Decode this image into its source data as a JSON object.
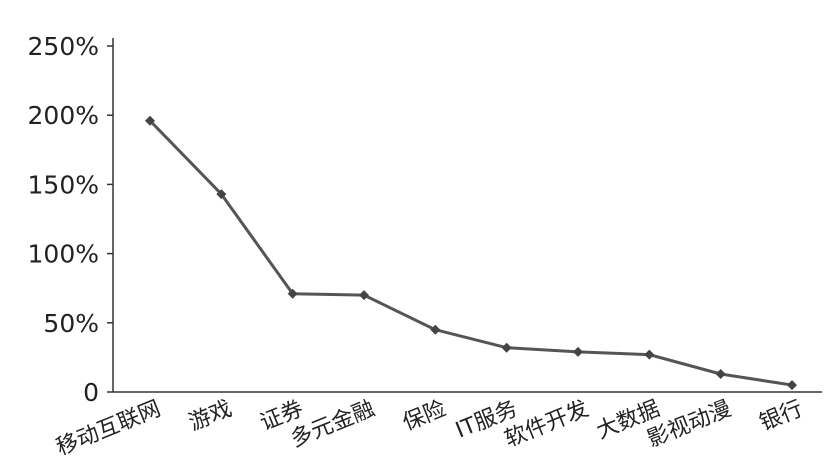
{
  "chart_data": {
    "type": "line",
    "categories": [
      "移动互联网",
      "游戏",
      "证券",
      "多元金融",
      "保险",
      "IT服务",
      "软件开发",
      "大数据",
      "影视动漫",
      "银行"
    ],
    "series": [
      {
        "values": [
          196,
          143,
          71,
          70,
          45,
          32,
          29,
          27,
          13,
          5
        ]
      }
    ],
    "ylim": [
      0,
      250
    ],
    "yticks": [
      {
        "value": 0,
        "label": "0"
      },
      {
        "value": 50,
        "label": "50%"
      },
      {
        "value": 100,
        "label": "100%"
      },
      {
        "value": 150,
        "label": "150%"
      },
      {
        "value": 200,
        "label": "200%"
      },
      {
        "value": 250,
        "label": "250%"
      }
    ],
    "grid": false,
    "colors": {
      "line": "#555555",
      "marker": "#444444",
      "axis": "#333333"
    }
  }
}
